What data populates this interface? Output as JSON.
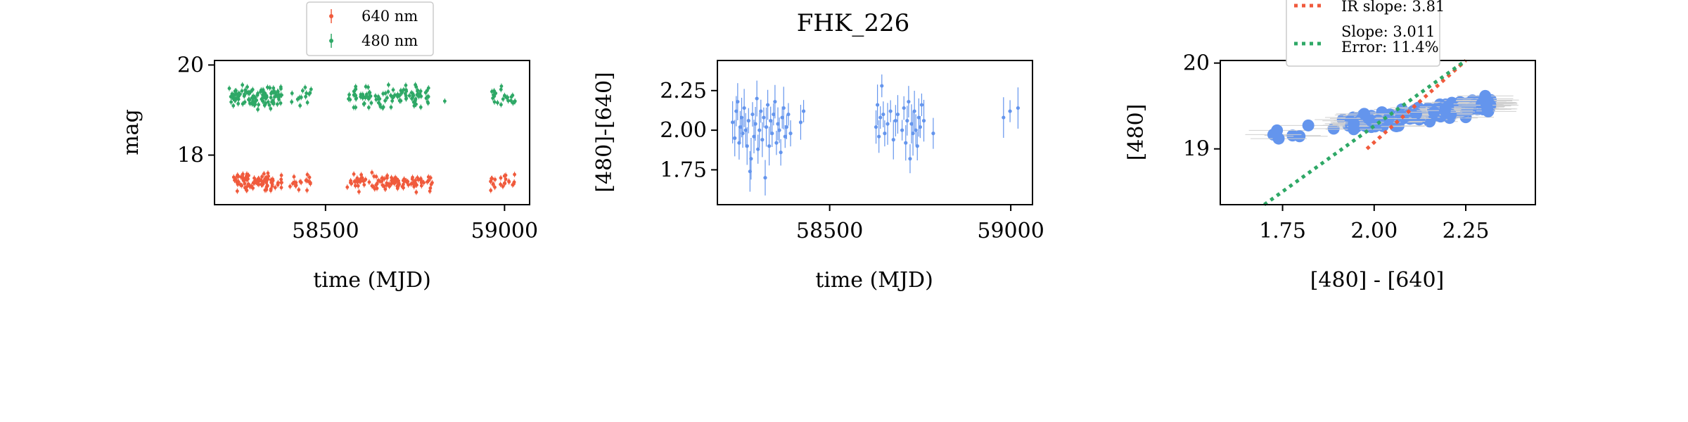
{
  "figure": {
    "title": "FHK_226"
  },
  "chart_data": [
    {
      "type": "scatter",
      "panel": "light-curve",
      "xlabel": "time (MJD)",
      "ylabel": "mag",
      "xlim": [
        58190,
        59070
      ],
      "ylim": [
        20.1,
        16.9
      ],
      "y_inverted": true,
      "xticks": [
        58500,
        59000
      ],
      "yticks": [
        18,
        20
      ],
      "grid": false,
      "legend": {
        "position": "top-center",
        "entries": [
          "640 nm",
          "480 nm"
        ]
      },
      "series": [
        {
          "name": "640 nm",
          "color": "#f05a3c",
          "x_clusters": [
            [
              58240,
              58380,
              95
            ],
            [
              58400,
              58460,
              18
            ],
            [
              58560,
              58700,
              60
            ],
            [
              58700,
              58800,
              45
            ],
            [
              58960,
              59030,
              22
            ]
          ],
          "y_mean": 17.4,
          "y_spread": 0.28
        },
        {
          "name": "480 nm",
          "color": "#2ea866",
          "x_clusters": [
            [
              58230,
              58380,
              110
            ],
            [
              58400,
              58460,
              14
            ],
            [
              58560,
              58700,
              55
            ],
            [
              58700,
              58790,
              50
            ],
            [
              58830,
              58840,
              1
            ],
            [
              58960,
              59030,
              22
            ]
          ],
          "y_mean": 19.3,
          "y_spread": 0.35
        }
      ]
    },
    {
      "type": "scatter",
      "panel": "color-curve",
      "xlabel": "time (MJD)",
      "ylabel": "[480]-[640]",
      "xlim": [
        58190,
        59060
      ],
      "ylim": [
        2.44,
        1.53
      ],
      "y_inverted": true,
      "xticks": [
        58500,
        59000
      ],
      "yticks": [
        1.75,
        2.0,
        2.25
      ],
      "grid": false,
      "series": [
        {
          "name": "",
          "color": "#6495ed",
          "points": [
            [
              58232,
              2.05
            ],
            [
              58238,
              1.95
            ],
            [
              58242,
              2.12
            ],
            [
              58246,
              2.18
            ],
            [
              58250,
              1.92
            ],
            [
              58253,
              2.02
            ],
            [
              58257,
              2.08
            ],
            [
              58260,
              1.98
            ],
            [
              58264,
              2.14
            ],
            [
              58268,
              2.0
            ],
            [
              58272,
              1.9
            ],
            [
              58276,
              2.06
            ],
            [
              58280,
              1.74
            ],
            [
              58283,
              1.82
            ],
            [
              58287,
              2.1
            ],
            [
              58291,
              1.96
            ],
            [
              58295,
              2.04
            ],
            [
              58299,
              2.2
            ],
            [
              58302,
              1.88
            ],
            [
              58306,
              2.0
            ],
            [
              58310,
              2.12
            ],
            [
              58314,
              1.94
            ],
            [
              58318,
              2.08
            ],
            [
              58322,
              1.7
            ],
            [
              58325,
              2.02
            ],
            [
              58329,
              2.16
            ],
            [
              58333,
              1.9
            ],
            [
              58337,
              2.06
            ],
            [
              58341,
              1.98
            ],
            [
              58345,
              2.1
            ],
            [
              58349,
              2.18
            ],
            [
              58353,
              1.92
            ],
            [
              58357,
              2.04
            ],
            [
              58361,
              2.0
            ],
            [
              58365,
              1.86
            ],
            [
              58369,
              2.08
            ],
            [
              58373,
              2.14
            ],
            [
              58377,
              1.96
            ],
            [
              58381,
              2.02
            ],
            [
              58386,
              2.1
            ],
            [
              58392,
              1.98
            ],
            [
              58420,
              2.05
            ],
            [
              58428,
              2.12
            ],
            [
              58628,
              2.02
            ],
            [
              58632,
              2.16
            ],
            [
              58636,
              1.96
            ],
            [
              58640,
              2.08
            ],
            [
              58644,
              2.28
            ],
            [
              58648,
              2.1
            ],
            [
              58652,
              1.98
            ],
            [
              58660,
              2.04
            ],
            [
              58668,
              2.12
            ],
            [
              58676,
              1.94
            ],
            [
              58682,
              2.06
            ],
            [
              58688,
              2.1
            ],
            [
              58700,
              2.0
            ],
            [
              58705,
              2.14
            ],
            [
              58710,
              1.92
            ],
            [
              58714,
              2.06
            ],
            [
              58718,
              2.18
            ],
            [
              58722,
              1.82
            ],
            [
              58726,
              2.04
            ],
            [
              58730,
              1.98
            ],
            [
              58734,
              2.12
            ],
            [
              58738,
              2.0
            ],
            [
              58742,
              1.9
            ],
            [
              58746,
              2.08
            ],
            [
              58750,
              2.02
            ],
            [
              58754,
              2.16
            ],
            [
              58760,
              2.06
            ],
            [
              58786,
              1.98
            ],
            [
              58980,
              2.08
            ],
            [
              58998,
              2.12
            ],
            [
              59020,
              2.14
            ]
          ]
        }
      ]
    },
    {
      "type": "scatter",
      "panel": "color-magnitude",
      "xlabel": "[480] - [640]",
      "ylabel": "[480]",
      "xlim": [
        1.58,
        2.44
      ],
      "ylim": [
        20.03,
        18.35
      ],
      "y_inverted": true,
      "xticks": [
        1.75,
        2.0,
        2.25
      ],
      "xtick_labels": [
        "1.75",
        "2.00",
        "2.25"
      ],
      "yticks": [
        19,
        20
      ],
      "grid": false,
      "legend": {
        "position": "top-center",
        "entries": [
          "IR slope: 3.81",
          "Slope: 3.011\nError: 11.4%"
        ]
      },
      "series": [
        {
          "name": "",
          "color": "#6495ed",
          "x_range": [
            1.7,
            2.32
          ],
          "y_center": 19.35,
          "slope": 1.1,
          "scatter": 0.13,
          "count": 170
        }
      ],
      "lines": [
        {
          "name": "IR slope: 3.81",
          "color": "#f05a3c",
          "style": "dotted",
          "x": [
            1.98,
            2.25
          ],
          "y": [
            19.0,
            20.03
          ]
        },
        {
          "name": "Slope: 3.011\nError: 11.4%",
          "color": "#2ea866",
          "style": "dotted",
          "x": [
            1.7,
            2.25
          ],
          "y": [
            18.35,
            20.03
          ]
        }
      ]
    }
  ]
}
